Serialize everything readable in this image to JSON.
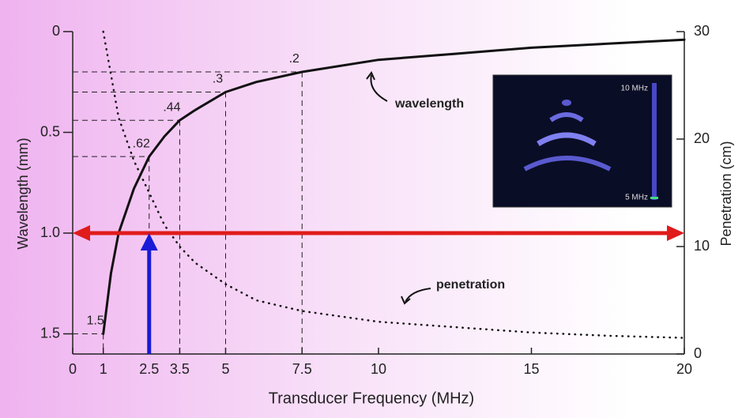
{
  "chart_data": {
    "type": "line",
    "xlabel": "Transducer Frequency (MHz)",
    "ylabel": "Wavelength (mm)",
    "y2label": "Penetration (cm)",
    "xlim": [
      0,
      20
    ],
    "xticks": [
      0,
      1,
      2.5,
      3.5,
      5,
      7.5,
      10,
      15,
      20
    ],
    "ylim": [
      1.6,
      0
    ],
    "yticks": [
      0,
      0.5,
      {
        "value": 1,
        "label": "1.0"
      },
      1.5
    ],
    "y2lim": [
      0,
      30
    ],
    "y2ticks": [
      0,
      10,
      20,
      30
    ],
    "series": [
      {
        "name": "wavelength",
        "color": "#111111",
        "style": "solid",
        "x": [
          1,
          1.25,
          1.5,
          2,
          2.5,
          3,
          3.5,
          4,
          5,
          6,
          7.5,
          10,
          12.5,
          15,
          17.5,
          20
        ],
        "values": [
          1.5,
          1.2,
          1.0,
          0.78,
          0.62,
          0.52,
          0.44,
          0.39,
          0.3,
          0.25,
          0.2,
          0.14,
          0.11,
          0.08,
          0.06,
          0.04
        ]
      },
      {
        "name": "penetration",
        "color": "#111111",
        "style": "dotted",
        "axis": "y2",
        "x": [
          1,
          1.5,
          2,
          2.5,
          3,
          3.5,
          4,
          5,
          6,
          7.5,
          10,
          12.5,
          15,
          17.5,
          20
        ],
        "values": [
          30,
          22,
          18,
          15,
          12,
          10,
          8.5,
          6.5,
          5,
          4,
          3,
          2.5,
          2,
          1.7,
          1.5
        ]
      }
    ],
    "markers": [
      {
        "x": 1,
        "y": 1.5,
        "label": "1.5"
      },
      {
        "x": 2.5,
        "y": 0.62,
        "label": ".62"
      },
      {
        "x": 3.5,
        "y": 0.44,
        "label": ".44"
      },
      {
        "x": 5,
        "y": 0.3,
        "label": ".3"
      },
      {
        "x": 7.5,
        "y": 0.2,
        "label": ".2"
      }
    ],
    "reference_lines": [
      {
        "axis": "y",
        "value": 1,
        "color": "#e01b1b"
      },
      {
        "axis": "x",
        "value": 2.5,
        "to": 1,
        "color": "#1a1ad6"
      }
    ],
    "inset": {
      "top_label": "10 MHz",
      "bottom_label": "5 MHz"
    }
  }
}
